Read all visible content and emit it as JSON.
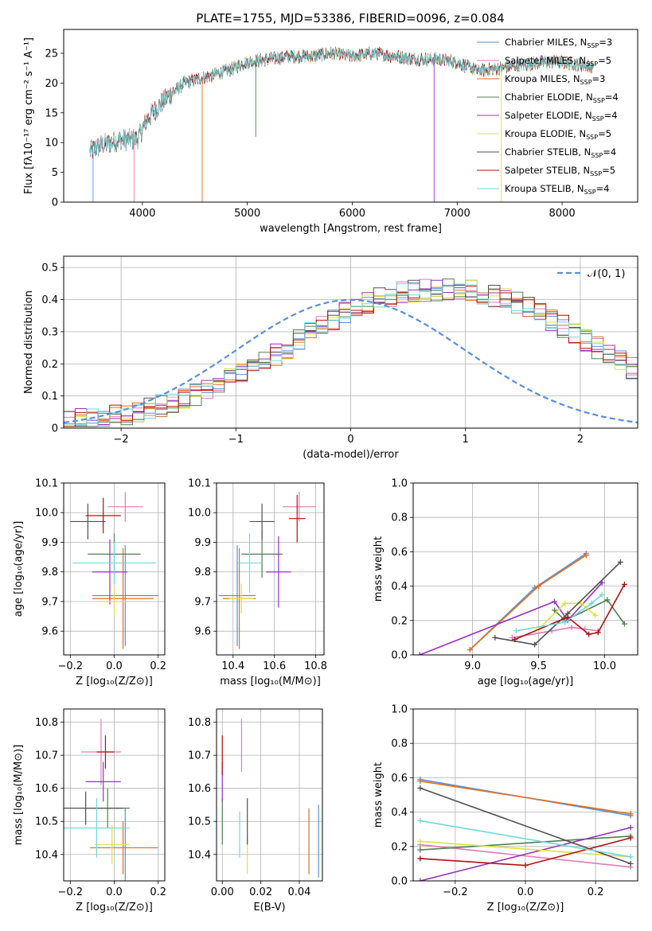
{
  "title": "PLATE=1755, MJD=53386, FIBERID=0096, z=0.084",
  "chart_data": [
    {
      "id": "spectrum",
      "type": "line",
      "xlabel": "wavelength [Angstrom, rest frame]",
      "ylabel": "Flux [fλ10⁻¹⁷ erg cm⁻² s⁻¹ A⁻¹]",
      "xlim": [
        3250,
        8720
      ],
      "ylim": [
        0,
        29
      ],
      "xticks": [
        4000,
        5000,
        6000,
        7000,
        8000
      ],
      "yticks": [
        0,
        5,
        10,
        15,
        20,
        25
      ],
      "grid": false,
      "legend_placement": "upper right",
      "legend": [
        {
          "label": "Chabrier MILES, N",
          "sub": "SSP",
          "tail": "=3",
          "color": "#5a8fd6"
        },
        {
          "label": "Salpeter MILES, N",
          "sub": "SSP",
          "tail": "=5",
          "color": "#e07ab8"
        },
        {
          "label": "Kroupa MILES, N",
          "sub": "SSP",
          "tail": "=3",
          "color": "#e07020"
        },
        {
          "label": "Chabrier ELODIE, N",
          "sub": "SSP",
          "tail": "=4",
          "color": "#508050"
        },
        {
          "label": "Salpeter ELODIE, N",
          "sub": "SSP",
          "tail": "=4",
          "color": "#9a30c0"
        },
        {
          "label": "Kroupa ELODIE, N",
          "sub": "SSP",
          "tail": "=5",
          "color": "#e0e040"
        },
        {
          "label": "Chabrier STELIB, N",
          "sub": "SSP",
          "tail": "=4",
          "color": "#505050"
        },
        {
          "label": "Salpeter STELIB, N",
          "sub": "SSP",
          "tail": "=5",
          "color": "#b01010"
        },
        {
          "label": "Kroupa STELIB, N",
          "sub": "SSP",
          "tail": "=4",
          "color": "#70d8dc"
        }
      ],
      "continuum": {
        "x": [
          3500,
          3600,
          3800,
          3950,
          4050,
          4200,
          4400,
          4600,
          4800,
          5000,
          5200,
          5400,
          5600,
          5800,
          6000,
          6200,
          6400,
          6600,
          6800,
          7000,
          7200,
          7400,
          7600,
          7800,
          8000,
          8200,
          8300
        ],
        "y": [
          8.5,
          9.5,
          10.5,
          10.5,
          14.0,
          17.0,
          20.0,
          21.0,
          22.0,
          23.5,
          24.0,
          24.5,
          24.5,
          25.0,
          24.5,
          25.0,
          24.5,
          24.0,
          24.0,
          23.5,
          22.0,
          22.5,
          23.0,
          23.5,
          23.5,
          23.0,
          22.8
        ]
      },
      "drops": [
        {
          "x": 3530,
          "y": 0
        },
        {
          "x": 3920,
          "y": 0
        },
        {
          "x": 4570,
          "y": 0
        },
        {
          "x": 5080,
          "y": 11
        },
        {
          "x": 6780,
          "y": 0
        },
        {
          "x": 7420,
          "y": 0
        }
      ]
    },
    {
      "id": "residuals",
      "type": "histogram",
      "xlabel": "(data-model)/error",
      "ylabel": "Normed distribution",
      "xlim": [
        -2.5,
        2.5
      ],
      "ylim": [
        0,
        0.535
      ],
      "xticks": [
        -2,
        -1,
        0,
        1,
        2
      ],
      "yticks": [
        0.0,
        0.1,
        0.2,
        0.3,
        0.4,
        0.5
      ],
      "grid": true,
      "legend_placement": "upper right",
      "legend": [
        {
          "label": "𝒩(0, 1)",
          "color": "#5a8fd6",
          "style": "dashed"
        }
      ],
      "bin_width": 0.1,
      "bins_start": -2.5,
      "profile": [
        0.022,
        0.026,
        0.03,
        0.034,
        0.038,
        0.045,
        0.052,
        0.06,
        0.07,
        0.08,
        0.09,
        0.105,
        0.118,
        0.133,
        0.15,
        0.168,
        0.186,
        0.206,
        0.228,
        0.25,
        0.272,
        0.295,
        0.317,
        0.338,
        0.357,
        0.374,
        0.389,
        0.402,
        0.413,
        0.421,
        0.426,
        0.429,
        0.431,
        0.431,
        0.429,
        0.426,
        0.421,
        0.413,
        0.402,
        0.389,
        0.374,
        0.357,
        0.338,
        0.317,
        0.295,
        0.272,
        0.25,
        0.228,
        0.206,
        0.186
      ],
      "gaussian": {
        "mu": 0,
        "sigma": 1
      }
    },
    {
      "id": "age-vs-Z",
      "type": "errorbar",
      "xlabel": "Z [log₁₀(Z/Z⊙)]",
      "ylabel": "age  [log₁₀(age/yr)]",
      "xlim": [
        -0.23,
        0.23
      ],
      "ylim": [
        9.52,
        10.1
      ],
      "xticks": [
        -0.2,
        0.0,
        0.2
      ],
      "yticks": [
        9.6,
        9.7,
        9.8,
        9.9,
        10.0,
        10.1
      ],
      "grid": true,
      "points": [
        {
          "x": 0.05,
          "y": 9.72,
          "xerr": 0.15,
          "yerr": 0.17,
          "color": "#5a8fd6"
        },
        {
          "x": 0.05,
          "y": 10.02,
          "xerr": 0.08,
          "yerr": 0.05,
          "color": "#e07ab8"
        },
        {
          "x": 0.04,
          "y": 9.71,
          "xerr": 0.14,
          "yerr": 0.17,
          "color": "#e07020"
        },
        {
          "x": 0.0,
          "y": 9.86,
          "xerr": 0.12,
          "yerr": 0.07,
          "color": "#508050"
        },
        {
          "x": -0.02,
          "y": 9.8,
          "xerr": 0.08,
          "yerr": 0.11,
          "color": "#9a30c0"
        },
        {
          "x": 0.0,
          "y": 9.7,
          "xerr": 0.06,
          "yerr": 0.05,
          "color": "#e0e040"
        },
        {
          "x": -0.12,
          "y": 9.97,
          "xerr": 0.08,
          "yerr": 0.06,
          "color": "#505050"
        },
        {
          "x": -0.05,
          "y": 9.99,
          "xerr": 0.08,
          "yerr": 0.06,
          "color": "#b01010"
        },
        {
          "x": 0.0,
          "y": 9.83,
          "xerr": 0.19,
          "yerr": 0.07,
          "color": "#70d8dc"
        }
      ]
    },
    {
      "id": "age-vs-mass",
      "type": "errorbar",
      "xlabel": "mass [log₁₀(M/M⊙)]",
      "ylabel": "",
      "xlim": [
        10.32,
        10.84
      ],
      "ylim": [
        9.52,
        10.1
      ],
      "xticks": [
        10.4,
        10.6,
        10.8
      ],
      "yticks": [
        9.6,
        9.7,
        9.8,
        9.9,
        10.0,
        10.1
      ],
      "grid": true,
      "points": [
        {
          "x": 10.42,
          "y": 9.72,
          "xerr": 0.09,
          "yerr": 0.17,
          "color": "#5a8fd6"
        },
        {
          "x": 10.72,
          "y": 10.02,
          "xerr": 0.08,
          "yerr": 0.05,
          "color": "#e07ab8"
        },
        {
          "x": 10.43,
          "y": 9.71,
          "xerr": 0.08,
          "yerr": 0.17,
          "color": "#e07020"
        },
        {
          "x": 10.54,
          "y": 9.86,
          "xerr": 0.1,
          "yerr": 0.08,
          "color": "#508050"
        },
        {
          "x": 10.62,
          "y": 9.8,
          "xerr": 0.06,
          "yerr": 0.12,
          "color": "#9a30c0"
        },
        {
          "x": 10.44,
          "y": 9.71,
          "xerr": 0.06,
          "yerr": 0.05,
          "color": "#e0e040"
        },
        {
          "x": 10.54,
          "y": 9.97,
          "xerr": 0.06,
          "yerr": 0.06,
          "color": "#505050"
        },
        {
          "x": 10.71,
          "y": 9.98,
          "xerr": 0.04,
          "yerr": 0.08,
          "color": "#b01010"
        },
        {
          "x": 10.48,
          "y": 9.83,
          "xerr": 0.06,
          "yerr": 0.1,
          "color": "#70d8dc"
        }
      ]
    },
    {
      "id": "weight-vs-age",
      "type": "line",
      "xlabel": "age  [log₁₀(age/yr)]",
      "ylabel": "mass weight",
      "xlim": [
        8.55,
        10.25
      ],
      "ylim": [
        0,
        1
      ],
      "xticks": [
        9.0,
        9.5,
        10.0
      ],
      "yticks": [
        0.0,
        0.2,
        0.4,
        0.6,
        0.8,
        1.0
      ],
      "grid": true,
      "series": [
        {
          "color": "#5a8fd6",
          "x": [
            8.98,
            9.47,
            9.86
          ],
          "y": [
            0.03,
            0.39,
            0.59
          ]
        },
        {
          "color": "#e07ab8",
          "x": [
            9.3,
            9.6,
            9.75,
            9.85,
            9.95
          ],
          "y": [
            0.1,
            0.14,
            0.16,
            0.15,
            0.14
          ]
        },
        {
          "color": "#e07020",
          "x": [
            8.98,
            9.5,
            9.86
          ],
          "y": [
            0.03,
            0.4,
            0.58
          ]
        },
        {
          "color": "#508050",
          "x": [
            9.62,
            9.7,
            10.02,
            10.15
          ],
          "y": [
            0.26,
            0.2,
            0.32,
            0.18
          ]
        },
        {
          "color": "#9a30c0",
          "x": [
            8.6,
            9.62,
            9.72,
            9.98
          ],
          "y": [
            0.0,
            0.31,
            0.2,
            0.42
          ]
        },
        {
          "color": "#e0e040",
          "x": [
            9.5,
            9.7,
            9.82,
            9.93
          ],
          "y": [
            0.15,
            0.3,
            0.3,
            0.23
          ]
        },
        {
          "color": "#505050",
          "x": [
            9.17,
            9.47,
            9.72,
            10.12
          ],
          "y": [
            0.1,
            0.06,
            0.24,
            0.54
          ]
        },
        {
          "color": "#b01010",
          "x": [
            9.32,
            9.72,
            9.88,
            9.95,
            10.15
          ],
          "y": [
            0.09,
            0.22,
            0.12,
            0.13,
            0.41
          ]
        },
        {
          "color": "#70d8dc",
          "x": [
            9.33,
            9.7,
            9.9,
            9.98
          ],
          "y": [
            0.14,
            0.19,
            0.3,
            0.35
          ]
        }
      ]
    },
    {
      "id": "mass-vs-Z",
      "type": "errorbar",
      "xlabel": "Z [log₁₀(Z/Z⊙)]",
      "ylabel": "mass [log₁₀(M/M⊙)]",
      "xlim": [
        -0.23,
        0.23
      ],
      "ylim": [
        10.32,
        10.84
      ],
      "xticks": [
        -0.2,
        0.0,
        0.2
      ],
      "yticks": [
        10.4,
        10.5,
        10.6,
        10.7,
        10.8
      ],
      "grid": true,
      "points": [
        {
          "x": 0.05,
          "y": 10.42,
          "xerr": 0.15,
          "yerr": 0.12,
          "color": "#5a8fd6"
        },
        {
          "x": -0.06,
          "y": 10.71,
          "xerr": 0.09,
          "yerr": 0.1,
          "color": "#e07ab8"
        },
        {
          "x": 0.04,
          "y": 10.42,
          "xerr": 0.15,
          "yerr": 0.08,
          "color": "#e07020"
        },
        {
          "x": -0.03,
          "y": 10.54,
          "xerr": 0.1,
          "yerr": 0.06,
          "color": "#508050"
        },
        {
          "x": -0.05,
          "y": 10.62,
          "xerr": 0.08,
          "yerr": 0.06,
          "color": "#9a30c0"
        },
        {
          "x": -0.01,
          "y": 10.43,
          "xerr": 0.08,
          "yerr": 0.06,
          "color": "#e0e040"
        },
        {
          "x": -0.13,
          "y": 10.54,
          "xerr": 0.17,
          "yerr": 0.05,
          "color": "#505050"
        },
        {
          "x": -0.04,
          "y": 10.71,
          "xerr": 0.04,
          "yerr": 0.05,
          "color": "#b01010"
        },
        {
          "x": -0.08,
          "y": 10.48,
          "xerr": 0.15,
          "yerr": 0.09,
          "color": "#70d8dc"
        }
      ]
    },
    {
      "id": "mass-vs-ebv",
      "type": "errorbar",
      "xlabel": "E(B-V)",
      "ylabel": "",
      "xlim": [
        -0.003,
        0.052
      ],
      "ylim": [
        10.32,
        10.84
      ],
      "xticks": [
        0.0,
        0.02,
        0.04
      ],
      "yticks": [
        10.4,
        10.5,
        10.6,
        10.7,
        10.8
      ],
      "grid": true,
      "points": [
        {
          "x": 0.05,
          "y": 10.44,
          "xerr": 0,
          "yerr": 0.11,
          "color": "#5a8fd6"
        },
        {
          "x": 0.01,
          "y": 10.73,
          "xerr": 0,
          "yerr": 0.08,
          "color": "#e07ab8"
        },
        {
          "x": 0.045,
          "y": 10.44,
          "xerr": 0,
          "yerr": 0.1,
          "color": "#e07020"
        },
        {
          "x": 0.0,
          "y": 10.5,
          "xerr": 0,
          "yerr": 0.07,
          "color": "#508050"
        },
        {
          "x": 0.0,
          "y": 10.62,
          "xerr": 0,
          "yerr": 0.06,
          "color": "#9a30c0"
        },
        {
          "x": 0.013,
          "y": 10.4,
          "xerr": 0,
          "yerr": 0.06,
          "color": "#e0e040"
        },
        {
          "x": 0.013,
          "y": 10.5,
          "xerr": 0,
          "yerr": 0.07,
          "color": "#505050"
        },
        {
          "x": 0.0,
          "y": 10.7,
          "xerr": 0,
          "yerr": 0.06,
          "color": "#b01010"
        },
        {
          "x": 0.009,
          "y": 10.46,
          "xerr": 0,
          "yerr": 0.07,
          "color": "#70d8dc"
        }
      ]
    },
    {
      "id": "weight-vs-Z",
      "type": "line",
      "xlabel": "Z [log₁₀(Z/Z⊙)]",
      "ylabel": "mass weight",
      "xlim": [
        -0.32,
        0.32
      ],
      "ylim": [
        0,
        1
      ],
      "xticks": [
        -0.2,
        0.0,
        0.2
      ],
      "yticks": [
        0.0,
        0.2,
        0.4,
        0.6,
        0.8,
        1.0
      ],
      "grid": true,
      "series": [
        {
          "color": "#5a8fd6",
          "x": [
            -0.3,
            0.3
          ],
          "y": [
            0.59,
            0.38
          ]
        },
        {
          "color": "#e07ab8",
          "x": [
            -0.3,
            0.3
          ],
          "y": [
            0.21,
            0.08
          ]
        },
        {
          "color": "#e07020",
          "x": [
            -0.3,
            0.3
          ],
          "y": [
            0.58,
            0.39
          ]
        },
        {
          "color": "#508050",
          "x": [
            -0.3,
            0.3
          ],
          "y": [
            0.18,
            0.26
          ]
        },
        {
          "color": "#9a30c0",
          "x": [
            -0.3,
            0.3
          ],
          "y": [
            0.0,
            0.31
          ]
        },
        {
          "color": "#e0e040",
          "x": [
            -0.3,
            0.3
          ],
          "y": [
            0.23,
            0.14
          ]
        },
        {
          "color": "#505050",
          "x": [
            -0.3,
            0.3
          ],
          "y": [
            0.54,
            0.1
          ]
        },
        {
          "color": "#b01010",
          "x": [
            -0.3,
            0.0,
            0.3
          ],
          "y": [
            0.13,
            0.09,
            0.25
          ]
        },
        {
          "color": "#70d8dc",
          "x": [
            -0.3,
            0.3
          ],
          "y": [
            0.35,
            0.14
          ]
        }
      ]
    }
  ]
}
